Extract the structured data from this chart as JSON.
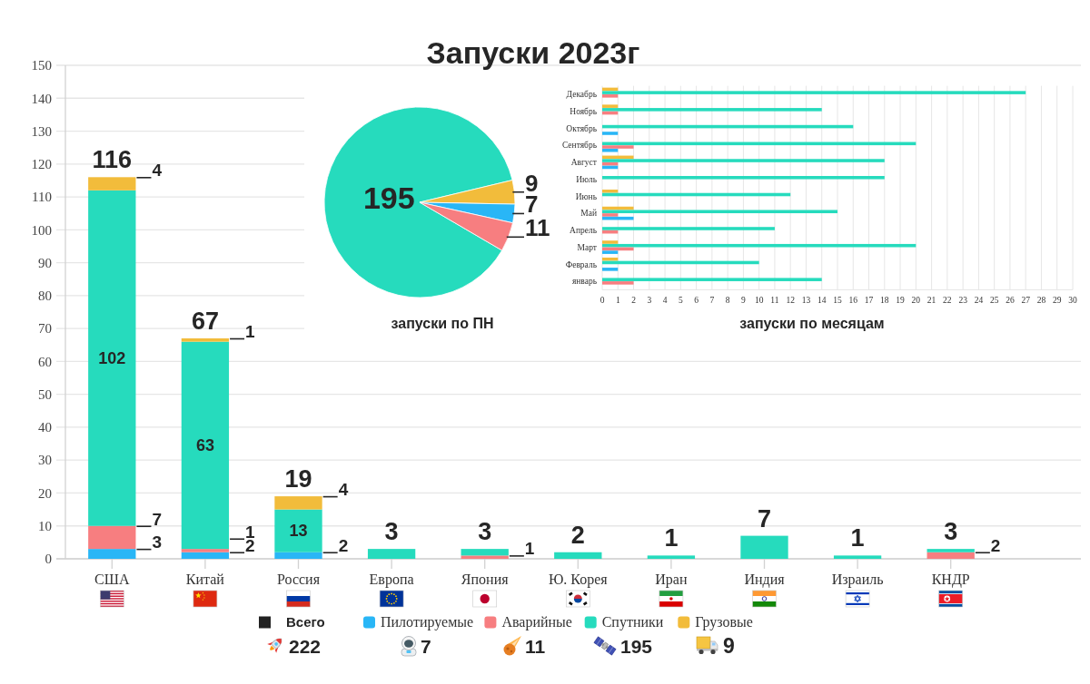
{
  "chart_data": [
    {
      "type": "bar",
      "title": "Запуски 2023г",
      "categories": [
        "США",
        "Китай",
        "Россия",
        "Европа",
        "Япония",
        "Ю. Корея",
        "Иран",
        "Индия",
        "Израиль",
        "КНДР"
      ],
      "stacked": true,
      "series": [
        {
          "name": "Пилотируемые",
          "color": "#29b6f6",
          "values": [
            3,
            2,
            2,
            null,
            null,
            null,
            null,
            null,
            null,
            null
          ],
          "value_labels": [
            "3",
            "2",
            "2",
            null,
            null,
            null,
            null,
            null,
            null,
            null
          ]
        },
        {
          "name": "Аварийные",
          "color": "#f77e80",
          "values": [
            7,
            1,
            null,
            null,
            1,
            null,
            null,
            null,
            null,
            2
          ],
          "value_labels": [
            "7",
            "1",
            null,
            null,
            "1",
            null,
            null,
            null,
            null,
            "2"
          ]
        },
        {
          "name": "Спутники",
          "color": "#26dbbd",
          "values": [
            102,
            63,
            13,
            3,
            2,
            2,
            1,
            7,
            1,
            1
          ],
          "value_labels": [
            "102",
            "63",
            "13",
            null,
            null,
            null,
            null,
            null,
            null,
            null
          ]
        },
        {
          "name": "Грузовые",
          "color": "#f2bc3b",
          "values": [
            4,
            1,
            4,
            null,
            null,
            null,
            null,
            null,
            null,
            null
          ],
          "value_labels": [
            "4",
            "1",
            "4",
            null,
            null,
            null,
            null,
            null,
            null,
            null
          ]
        }
      ],
      "totals": [
        "116",
        "67",
        "19",
        "3",
        "3",
        "2",
        "1",
        "7",
        "1",
        "3"
      ],
      "ylim": [
        0,
        150
      ],
      "yticks": [
        0,
        10,
        20,
        30,
        40,
        50,
        60,
        70,
        80,
        90,
        100,
        110,
        120,
        130,
        140,
        150
      ],
      "grid": "y",
      "legend": "bottom",
      "annotations": [
        "Всего",
        "222",
        "7",
        "11",
        "195",
        "9"
      ]
    },
    {
      "type": "pie",
      "title": "запуски по ПН",
      "categories": [
        null,
        null,
        null,
        null
      ],
      "values": [
        195,
        9,
        7,
        11
      ],
      "colors": [
        "#26dbbd",
        "#f2bc3b",
        "#29b6f6",
        "#f77e80"
      ],
      "data_labels": true
    },
    {
      "type": "bar",
      "orientation": "horizontal",
      "title": "запуски по месяцам",
      "categories": [
        "Декабрь",
        "Ноябрь",
        "Октябрь",
        "Сентябрь",
        "Август",
        "Июль",
        "Июнь",
        "Май",
        "Апрель",
        "Март",
        "Февраль",
        "январь"
      ],
      "series": [
        {
          "color": "#f2bc3b",
          "values": [
            1,
            1,
            null,
            null,
            2,
            null,
            1,
            2,
            null,
            1,
            1,
            null
          ]
        },
        {
          "color": "#26dbbd",
          "values": [
            27,
            14,
            16,
            20,
            18,
            18,
            12,
            15,
            11,
            20,
            10,
            14
          ]
        },
        {
          "color": "#f77e80",
          "values": [
            1,
            1,
            null,
            2,
            1,
            null,
            null,
            1,
            1,
            2,
            null,
            2
          ]
        },
        {
          "color": "#29b6f6",
          "values": [
            null,
            null,
            1,
            1,
            1,
            null,
            null,
            2,
            null,
            1,
            1,
            null
          ]
        }
      ],
      "xlim": [
        0,
        30
      ],
      "xticks": [
        0,
        1,
        2,
        3,
        4,
        5,
        6,
        7,
        8,
        9,
        10,
        11,
        12,
        13,
        14,
        15,
        16,
        17,
        18,
        19,
        20,
        21,
        22,
        23,
        24,
        25,
        26,
        27,
        28,
        29,
        30
      ],
      "grid": "x"
    }
  ]
}
